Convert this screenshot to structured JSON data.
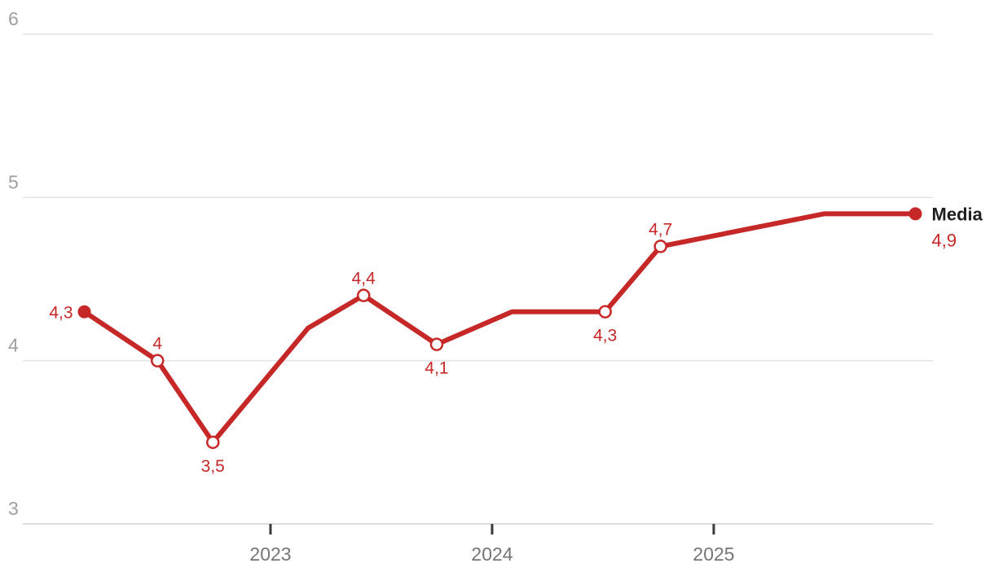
{
  "chart_data": {
    "type": "line",
    "title": "",
    "xlabel": "",
    "ylabel": "",
    "y_axis": {
      "min": 3,
      "max": 6,
      "tick_labels": [
        "6",
        "5",
        "4",
        "3"
      ],
      "ticks": [
        6,
        5,
        4,
        3
      ],
      "grid": true
    },
    "x_axis": {
      "tick_labels": [
        "2023",
        "2024",
        "2025"
      ],
      "ticks": [
        2023,
        2024,
        2025
      ]
    },
    "series": [
      {
        "name": "Media",
        "end_label": "Media",
        "end_value_label": "4,9",
        "points": [
          {
            "x": 2022.16,
            "y": 4.3,
            "label": "4,3",
            "label_pos": "left",
            "marker": "filled"
          },
          {
            "x": 2022.49,
            "y": 4.0,
            "label": "4",
            "label_pos": "top",
            "marker": "open"
          },
          {
            "x": 2022.74,
            "y": 3.5,
            "label": "3,5",
            "label_pos": "bottom",
            "marker": "open"
          },
          {
            "x": 2023.17,
            "y": 4.2,
            "label": "",
            "label_pos": "",
            "marker": "none"
          },
          {
            "x": 2023.42,
            "y": 4.4,
            "label": "4,4",
            "label_pos": "top",
            "marker": "open"
          },
          {
            "x": 2023.75,
            "y": 4.1,
            "label": "4,1",
            "label_pos": "bottom",
            "marker": "open"
          },
          {
            "x": 2024.09,
            "y": 4.3,
            "label": "",
            "label_pos": "",
            "marker": "none"
          },
          {
            "x": 2024.51,
            "y": 4.3,
            "label": "4,3",
            "label_pos": "bottom",
            "marker": "open"
          },
          {
            "x": 2024.76,
            "y": 4.7,
            "label": "4,7",
            "label_pos": "top",
            "marker": "open"
          },
          {
            "x": 2025.5,
            "y": 4.9,
            "label": "",
            "label_pos": "",
            "marker": "none"
          },
          {
            "x": 2025.91,
            "y": 4.9,
            "label": "4,9",
            "label_pos": "right",
            "marker": "filled"
          }
        ]
      }
    ],
    "legend_position": "end-of-line",
    "colors": {
      "line": "#c62828",
      "point_label": "#c62828",
      "series_name_text": "#1f1f1f",
      "y_axis_text": "#a0a0a0",
      "x_axis_text": "#757575",
      "gridline": "#e3e3e3",
      "axis_line": "#dcdcdc",
      "tick_mark": "#3a3a3a",
      "background": "#ffffff"
    }
  }
}
